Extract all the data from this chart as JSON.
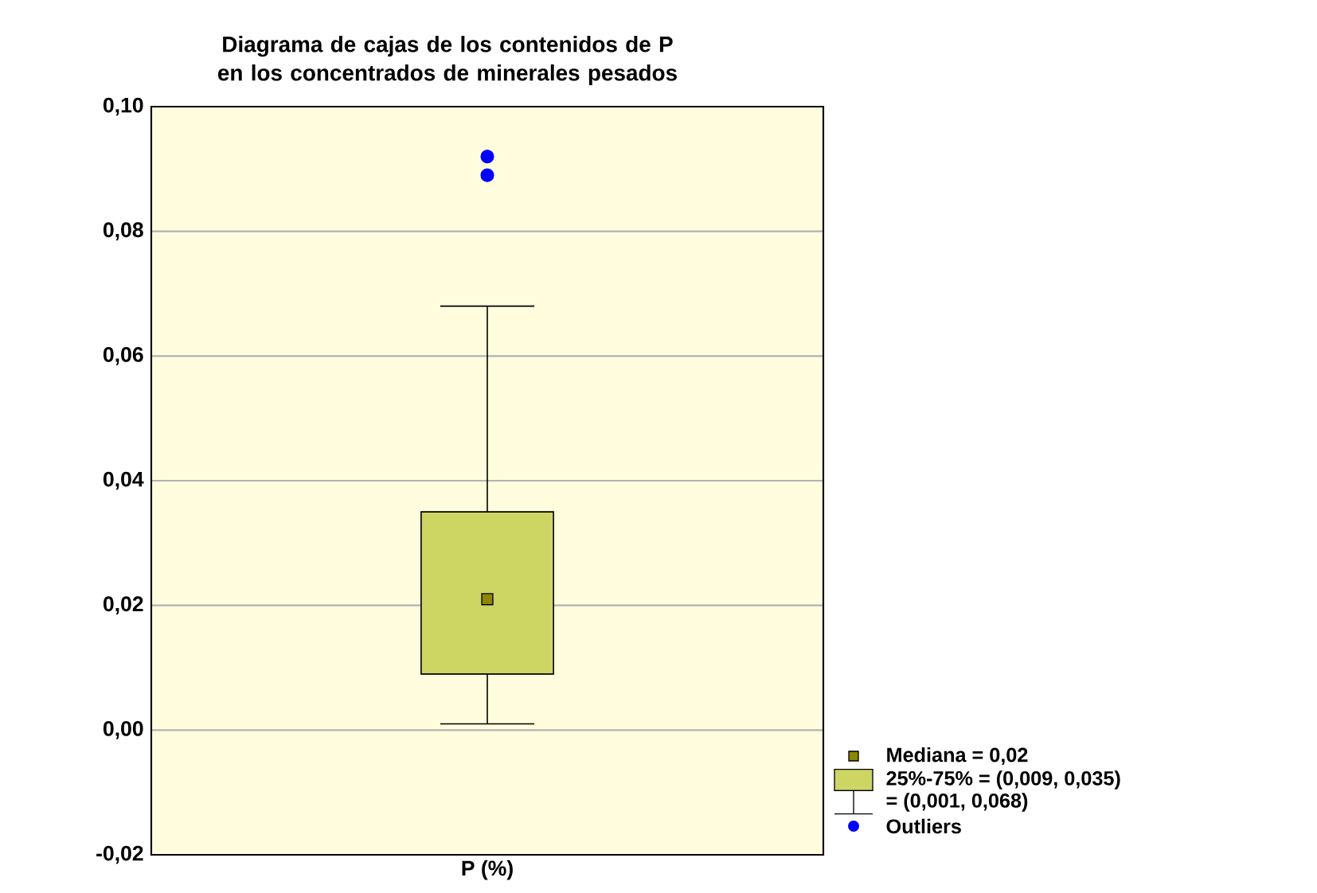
{
  "chart_data": {
    "type": "box",
    "title": "Diagrama de cajas de los contenidos de P en los concentrados de minerales pesados",
    "categories": [
      "P (%)"
    ],
    "series": [
      {
        "color": "#cdd563",
        "boxes": [
          {
            "low": 0.001,
            "q1": 0.009,
            "median": 0.021,
            "q3": 0.035,
            "high": 0.068,
            "outliers": [
              0.092,
              0.089
            ]
          }
        ]
      }
    ],
    "ylim": [
      -0.02,
      0.1
    ],
    "yticks": [
      {
        "value": -0.02,
        "label": "-0,02"
      },
      {
        "value": 0,
        "label": "0,00"
      },
      {
        "value": 0.02,
        "label": "0,02"
      },
      {
        "value": 0.04,
        "label": "0,04"
      },
      {
        "value": 0.06,
        "label": "0,06"
      },
      {
        "value": 0.08,
        "label": "0,08"
      },
      {
        "value": 0.1,
        "label": "0,10"
      }
    ],
    "grid": "y",
    "annotations": [
      "Mediana = 0,02",
      "25%-75% = (0,009, 0,035)",
      "= (0,001, 0,068)",
      "Outliers"
    ]
  }
}
